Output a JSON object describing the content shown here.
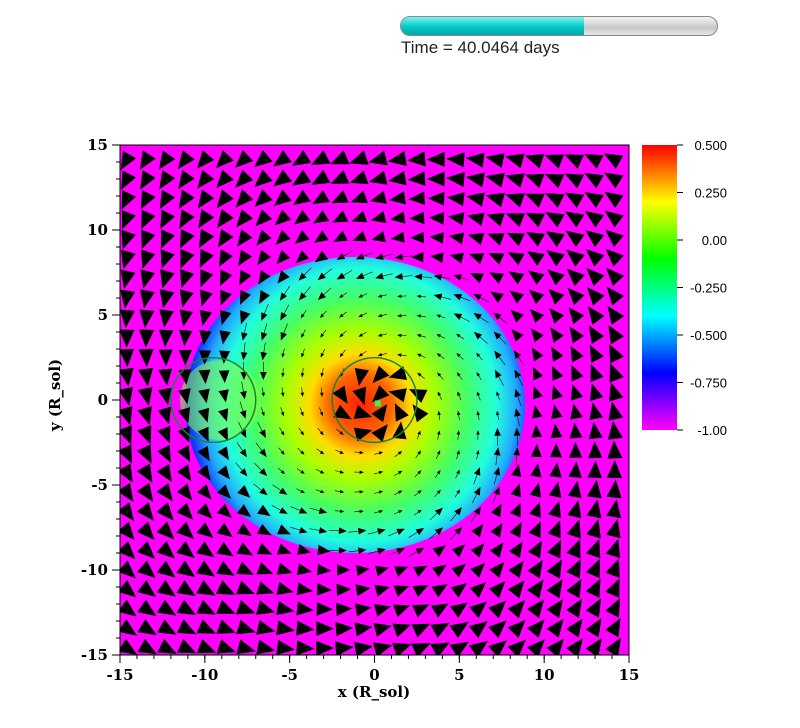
{
  "timer": {
    "label": "Time = 40.0464 days",
    "progress_fraction": 0.58,
    "fill_color": "#00c8c8"
  },
  "chart_data": {
    "type": "heatmap",
    "title": "",
    "xlabel": "x (R_sol)",
    "ylabel": "y (R_sol)",
    "xlim": [
      -15,
      15
    ],
    "ylim": [
      -15,
      15
    ],
    "x_ticks": [
      "-15",
      "-10",
      "-5",
      "0",
      "5",
      "10",
      "15"
    ],
    "y_ticks": [
      "15",
      "10",
      "5",
      "0",
      "-5",
      "-10",
      "-15"
    ],
    "colorbar": {
      "min": -1.0,
      "max": 0.5,
      "tick_labels": [
        "0.500",
        "0.250",
        "0.00",
        "-0.250",
        "-0.500",
        "-0.750",
        "-1.00"
      ],
      "colors": [
        "#ff0000",
        "#ffff00",
        "#00ff00",
        "#00ffff",
        "#0000ff",
        "#ff00ff"
      ]
    },
    "overlays": {
      "vectors": "velocity glyphs (black arrowheads)",
      "circles": [
        {
          "cx": -9.5,
          "cy": 0.0,
          "r": 2.5,
          "color": "#118833"
        },
        {
          "cx": 0.0,
          "cy": 0.0,
          "r": 2.5,
          "color": "#118833"
        }
      ],
      "core_marker": {
        "x": 0.2,
        "y": -0.2,
        "color": "#44ee55"
      }
    },
    "grid": false,
    "legend": "right"
  }
}
